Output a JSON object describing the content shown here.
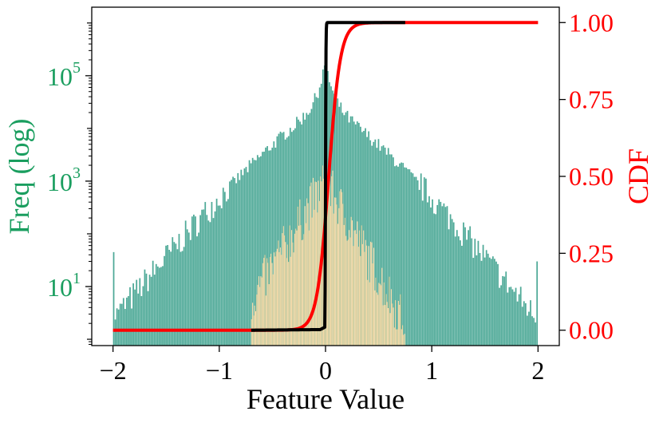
{
  "chart_data": {
    "type": "bar",
    "xlabel": "Feature Value",
    "ylabel_left": "Freq (log)",
    "ylabel_right": "CDF",
    "xlim": [
      -2.2,
      2.2
    ],
    "x_ticks": [
      -2,
      -1,
      0,
      1,
      2
    ],
    "x_tick_labels": [
      "−2",
      "−1",
      "0",
      "1",
      "2"
    ],
    "y_left_scale": "log",
    "y_left_range_log10": [
      -0.12,
      6.3
    ],
    "y_left_ticks_log10": [
      1,
      3,
      5
    ],
    "y_left_tick_labels": [
      {
        "base": "10",
        "exp": "1"
      },
      {
        "base": "10",
        "exp": "3"
      },
      {
        "base": "10",
        "exp": "5"
      }
    ],
    "y_right_range": [
      -0.05,
      1.05
    ],
    "y_right_ticks": [
      0.0,
      0.25,
      0.5,
      0.75,
      1.0
    ],
    "y_right_tick_labels": [
      "0.00",
      "0.25",
      "0.50",
      "0.75",
      "1.00"
    ],
    "grid": false,
    "colors": {
      "left_axis": "#1a9e5f",
      "right_axis": "#ff0000",
      "teal_hist": "#2f9a85",
      "orange_hist": "#fddba6",
      "black_cdf": "#000000",
      "red_cdf": "#ff0000"
    },
    "series": [
      {
        "kind": "histogram",
        "color": "teal",
        "x_range": [
          -2,
          2
        ],
        "peak_x": 0,
        "peak_count": 200000,
        "sigma_core": 0.09,
        "decay_log10_per_unit": 2.45,
        "floor_count": 2,
        "edge_spikes": [
          {
            "x": -2.0,
            "count": 45
          },
          {
            "x": 2.0,
            "count": 30
          }
        ]
      },
      {
        "kind": "histogram",
        "color": "orange",
        "x_range": [
          -0.7,
          0.75
        ],
        "peak_x": 0,
        "peak_count": 1000,
        "decay_log10_per_unit": 3.6,
        "floor_count": 1
      },
      {
        "kind": "cdf",
        "color": "red",
        "x_range": [
          -2,
          2
        ],
        "center": 0.03,
        "scale": 0.055
      },
      {
        "kind": "cdf",
        "color": "black",
        "x_range": [
          -0.7,
          0.75
        ],
        "center": 0.0,
        "scale": 0.002,
        "start_value": 0.0,
        "pre_jump_value": 0.01
      }
    ]
  }
}
